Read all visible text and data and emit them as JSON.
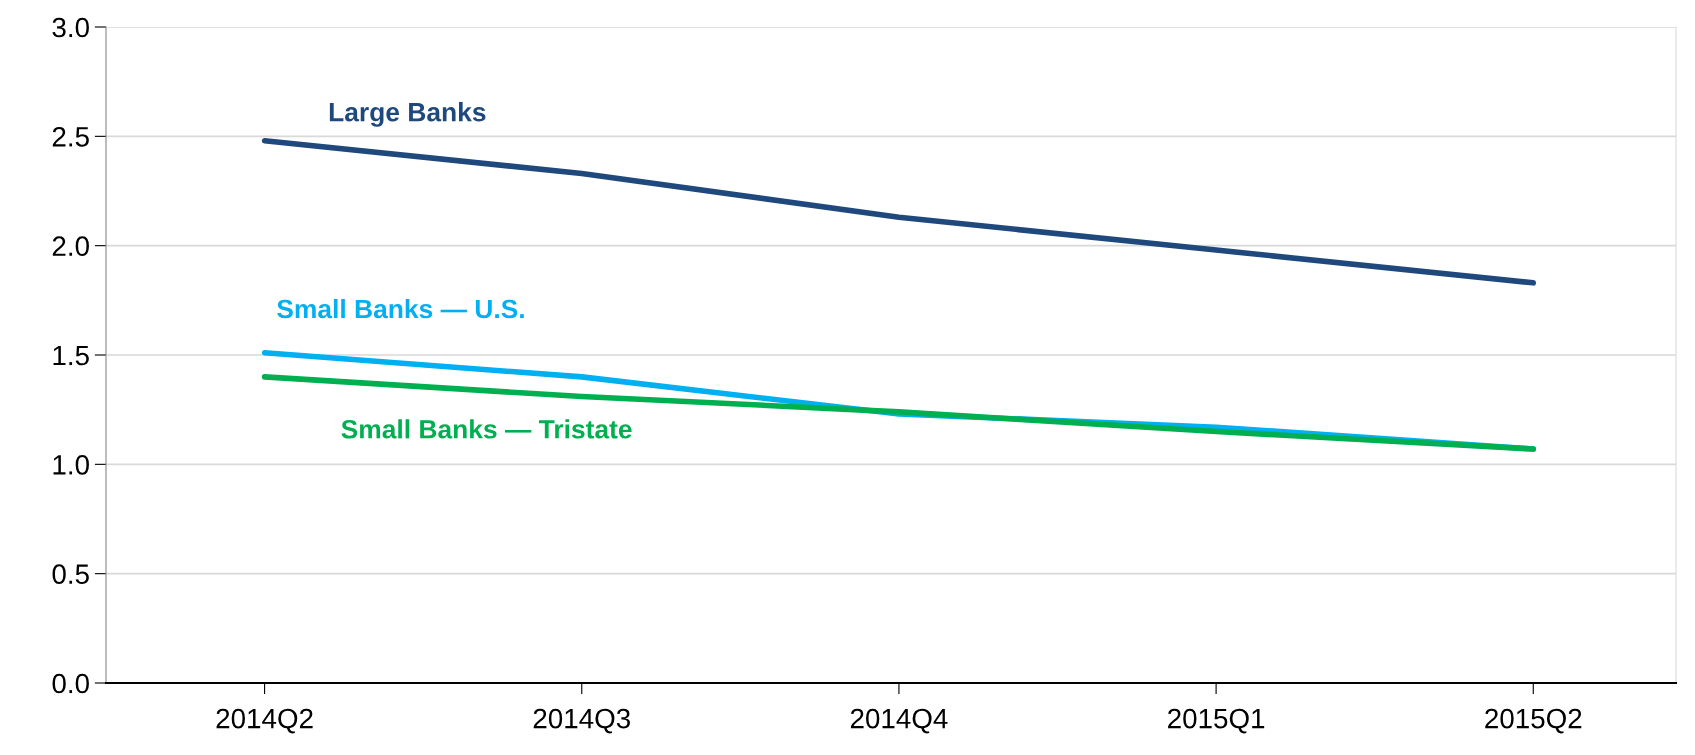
{
  "chart_data": {
    "type": "line",
    "categories": [
      "2014Q2",
      "2014Q3",
      "2014Q4",
      "2015Q1",
      "2015Q2"
    ],
    "series": [
      {
        "name": "Large Banks",
        "color": "#1f497d",
        "values": [
          2.48,
          2.33,
          2.13,
          1.98,
          1.83
        ]
      },
      {
        "name": "Small Banks — U.S.",
        "color": "#00b0f0",
        "values": [
          1.51,
          1.4,
          1.23,
          1.17,
          1.07
        ]
      },
      {
        "name": "Small Banks — Tristate",
        "color": "#00b050",
        "values": [
          1.4,
          1.31,
          1.24,
          1.15,
          1.07
        ]
      }
    ],
    "ylim": [
      0,
      3
    ],
    "yticks": [
      {
        "value": 0,
        "label": "0.0"
      },
      {
        "value": 0.5,
        "label": "0.5"
      },
      {
        "value": 1,
        "label": "1.0"
      },
      {
        "value": 1.5,
        "label": "1.5"
      },
      {
        "value": 2,
        "label": "2.0"
      },
      {
        "value": 2.5,
        "label": "2.5"
      },
      {
        "value": 3,
        "label": "3.0"
      }
    ],
    "grid": "y",
    "marker": "none",
    "line_style": "solid",
    "legend": false
  }
}
